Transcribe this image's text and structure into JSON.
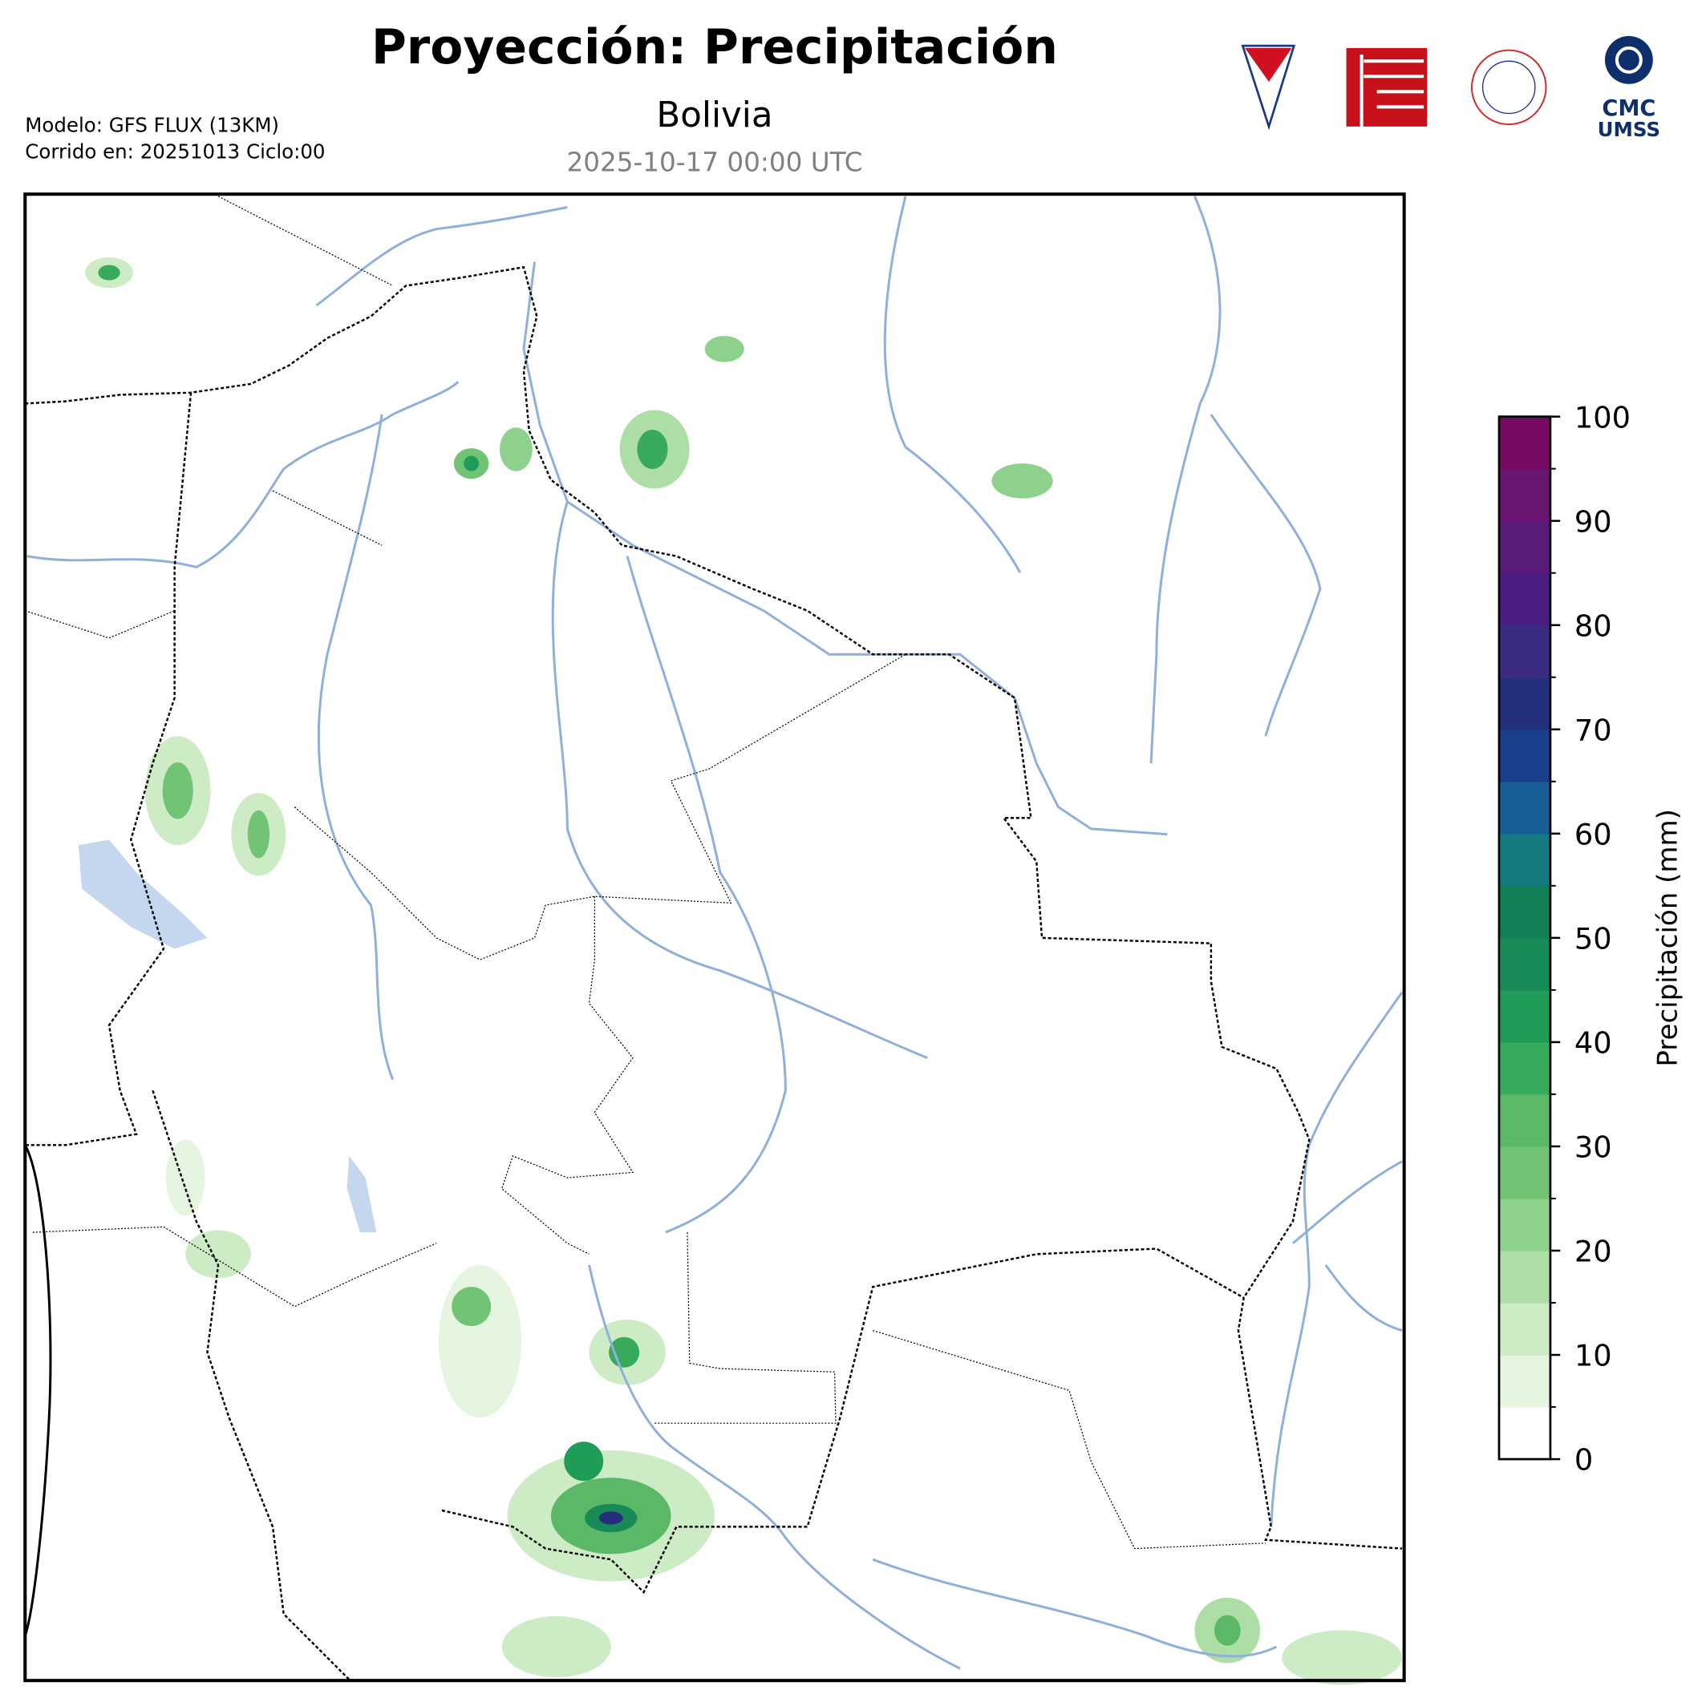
{
  "header": {
    "title": "Proyección: Precipitación",
    "subtitle": "Bolivia",
    "valid_time": "2025-10-17 00:00 UTC",
    "model": "Modelo: GFS FLUX (13KM)",
    "run": "Corrido en: 20251013 Ciclo:00",
    "logo_text": [
      "CMC",
      "UMSS"
    ]
  },
  "colorbar": {
    "label": "Precipitación (mm)",
    "lim": [
      0,
      100
    ],
    "ticks": [
      0,
      10,
      20,
      30,
      40,
      50,
      60,
      70,
      80,
      90,
      100
    ],
    "levels": [
      0,
      5,
      10,
      15,
      20,
      25,
      30,
      35,
      40,
      45,
      50,
      55,
      60,
      65,
      70,
      75,
      80,
      85,
      90,
      95,
      100
    ],
    "colors": [
      "#ffffff",
      "#e5f5e0",
      "#cdebc4",
      "#addea6",
      "#8dd18c",
      "#72c475",
      "#5bb867",
      "#38aa5c",
      "#1e9c58",
      "#178a55",
      "#127f56",
      "#157a80",
      "#165f96",
      "#173f8a",
      "#232f7c",
      "#3a2a80",
      "#4a1d83",
      "#5a1a7a",
      "#691570",
      "#760a63"
    ]
  }
}
